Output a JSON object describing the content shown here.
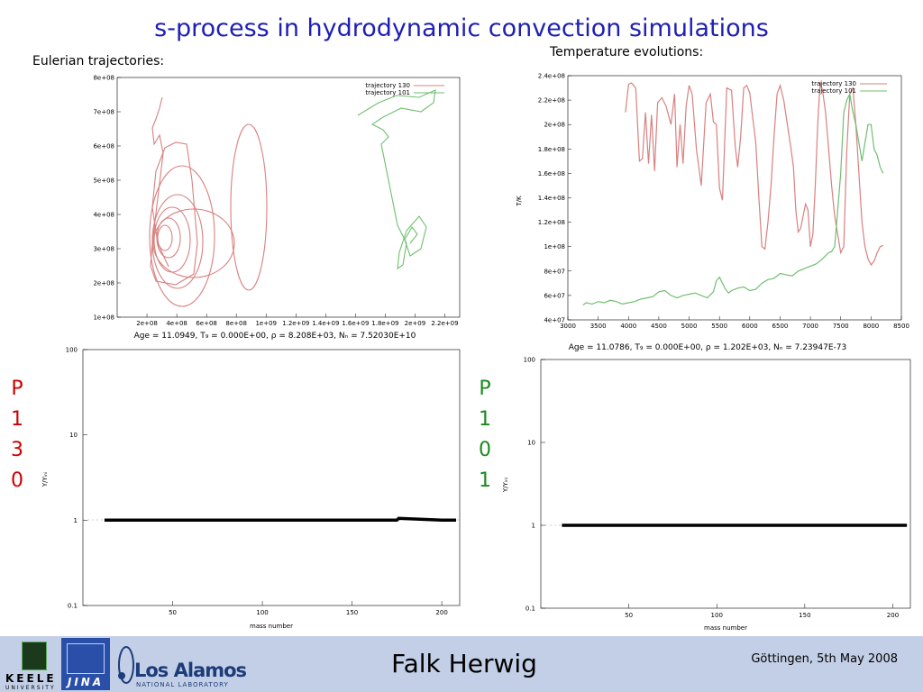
{
  "slide": {
    "title": "s-process in hydrodynamic convection simulations",
    "subtitle_left": "Eulerian trajectories:",
    "subtitle_right": "Temperature evolutions:",
    "side_label_left": [
      "P",
      "1",
      "3",
      "0"
    ],
    "side_label_right": [
      "P",
      "1",
      "0",
      "1"
    ],
    "colors": {
      "title": "#1f1fb4",
      "p130": "#cc0000",
      "p101": "#1a8a1a",
      "footer_bg": "#c3cfe6"
    }
  },
  "footer": {
    "author": "Falk Herwig",
    "date": "Göttingen, 5th May 2008",
    "keele_text": "KEELE",
    "keele_sub": "UNIVERSITY",
    "jina_text": "JINA",
    "losalamos_text": "Los Alamos",
    "losalamos_sub": "NATIONAL LABORATORY"
  },
  "chart_data": [
    {
      "id": "eulerian",
      "type": "line",
      "caption": "Age = 11.0949, T₉ = 0.000E+00, ρ = 8.208E+03, Nₙ = 7.52030E+10",
      "legend": [
        "trajectory 130",
        "trajectory 101"
      ],
      "yticks": [
        "1e+08",
        "2e+08",
        "3e+08",
        "4e+08",
        "5e+08",
        "6e+08",
        "7e+08",
        "8e+08"
      ],
      "xticks": [
        "2e+08",
        "4e+08",
        "6e+08",
        "8e+08",
        "1e+09",
        "1.2e+09",
        "1.4e+09",
        "1.6e+09",
        "1.8e+09",
        "2e+09",
        "2.2e+09"
      ],
      "ylim": [
        100000000.0,
        800000000.0
      ],
      "xlim": [
        0,
        2300000000.0
      ]
    },
    {
      "id": "temperature",
      "type": "line",
      "caption": "Age = 11.0786, T₉ = 0.000E+00, ρ = 1.202E+03, Nₙ = 7.23947E-73",
      "ylabel": "T/K",
      "legend": [
        "trajectory 130",
        "trajectory 101"
      ],
      "yticks": [
        "4e+07",
        "6e+07",
        "8e+07",
        "1e+08",
        "1.2e+08",
        "1.4e+08",
        "1.6e+08",
        "1.8e+08",
        "2e+08",
        "2.2e+08",
        "2.4e+08"
      ],
      "xticks": [
        "3000",
        "3500",
        "4000",
        "4500",
        "5000",
        "5500",
        "6000",
        "6500",
        "7000",
        "7500",
        "8000",
        "8500"
      ],
      "ylim": [
        40000000.0,
        240000000.0
      ],
      "xlim": [
        3000,
        8500
      ],
      "series": [
        {
          "name": "trajectory 130",
          "x": [
            3950,
            4000,
            4050,
            4120,
            4180,
            4230,
            4280,
            4330,
            4380,
            4430,
            4480,
            4550,
            4620,
            4700,
            4760,
            4800,
            4850,
            4900,
            4950,
            5000,
            5050,
            5120,
            5200,
            5280,
            5350,
            5400,
            5450,
            5500,
            5550,
            5620,
            5700,
            5760,
            5800,
            5850,
            5900,
            5950,
            6000,
            6050,
            6100,
            6150,
            6200,
            6250,
            6300,
            6350,
            6400,
            6450,
            6500,
            6560,
            6620,
            6680,
            6720,
            6760,
            6800,
            6840,
            6880,
            6920,
            6960,
            7000,
            7040,
            7080,
            7120,
            7160,
            7200,
            7250,
            7300,
            7350,
            7400,
            7450,
            7500,
            7550,
            7600,
            7650,
            7700,
            7750,
            7800,
            7850,
            7900,
            7950,
            8000,
            8050,
            8100,
            8150,
            8200
          ],
          "y": [
            210,
            233,
            234,
            230,
            170,
            172,
            210,
            168,
            208,
            162,
            218,
            222,
            215,
            200,
            225,
            165,
            200,
            168,
            215,
            232,
            225,
            180,
            150,
            218,
            225,
            202,
            200,
            148,
            138,
            230,
            228,
            182,
            165,
            190,
            230,
            232,
            226,
            205,
            185,
            140,
            100,
            98,
            120,
            150,
            190,
            225,
            232,
            220,
            200,
            180,
            165,
            130,
            112,
            115,
            125,
            135,
            130,
            100,
            110,
            150,
            200,
            235,
            228,
            210,
            180,
            150,
            125,
            110,
            95,
            100,
            180,
            225,
            230,
            200,
            160,
            120,
            100,
            90,
            85,
            88,
            95,
            100,
            101
          ],
          "units_note": "y in 1e6 K"
        },
        {
          "name": "trajectory 101",
          "x": [
            3250,
            3300,
            3400,
            3500,
            3600,
            3700,
            3800,
            3900,
            4000,
            4100,
            4200,
            4300,
            4400,
            4500,
            4600,
            4700,
            4800,
            4900,
            5000,
            5100,
            5200,
            5300,
            5400,
            5450,
            5500,
            5550,
            5600,
            5650,
            5700,
            5800,
            5900,
            6000,
            6100,
            6200,
            6300,
            6400,
            6500,
            6600,
            6700,
            6800,
            6900,
            7000,
            7100,
            7200,
            7300,
            7350,
            7400,
            7450,
            7500,
            7550,
            7600,
            7650,
            7700,
            7750,
            7800,
            7850,
            7900,
            7950,
            8000,
            8050,
            8100,
            8150,
            8200
          ],
          "y": [
            52,
            54,
            53,
            55,
            54,
            56,
            55,
            53,
            54,
            55,
            57,
            58,
            59,
            63,
            64,
            60,
            58,
            60,
            61,
            62,
            60,
            58,
            63,
            72,
            75,
            70,
            65,
            62,
            64,
            66,
            67,
            64,
            65,
            70,
            73,
            74,
            78,
            77,
            76,
            80,
            82,
            84,
            86,
            90,
            95,
            96,
            100,
            130,
            160,
            210,
            220,
            225,
            210,
            200,
            185,
            170,
            185,
            200,
            200,
            180,
            175,
            165,
            160
          ],
          "units_note": "y in 1e6 K"
        }
      ]
    },
    {
      "id": "abund130",
      "type": "line",
      "xlabel": "mass number",
      "ylabel": "Y/Yᵢₙᵢ",
      "yscale": "log",
      "ylim": [
        0.1,
        100
      ],
      "xlim": [
        0,
        210
      ],
      "yticks": [
        "0.1",
        "1",
        "10",
        "100"
      ],
      "xticks": [
        "50",
        "100",
        "150",
        "200"
      ],
      "series": [
        {
          "name": "",
          "x": [
            12,
            50,
            100,
            150,
            175,
            176,
            200,
            208
          ],
          "y": [
            1,
            1,
            1,
            1,
            1,
            1.05,
            1,
            1
          ]
        }
      ]
    },
    {
      "id": "abund101",
      "type": "line",
      "xlabel": "mass number",
      "ylabel": "Y/Yᵢₙᵢ",
      "yscale": "log",
      "ylim": [
        0.1,
        100
      ],
      "xlim": [
        0,
        210
      ],
      "yticks": [
        "0.1",
        "1",
        "10",
        "100"
      ],
      "xticks": [
        "50",
        "100",
        "150",
        "200"
      ],
      "series": [
        {
          "name": "",
          "x": [
            12,
            50,
            100,
            150,
            200,
            208
          ],
          "y": [
            1,
            1,
            1,
            1,
            1,
            1
          ]
        }
      ]
    }
  ]
}
